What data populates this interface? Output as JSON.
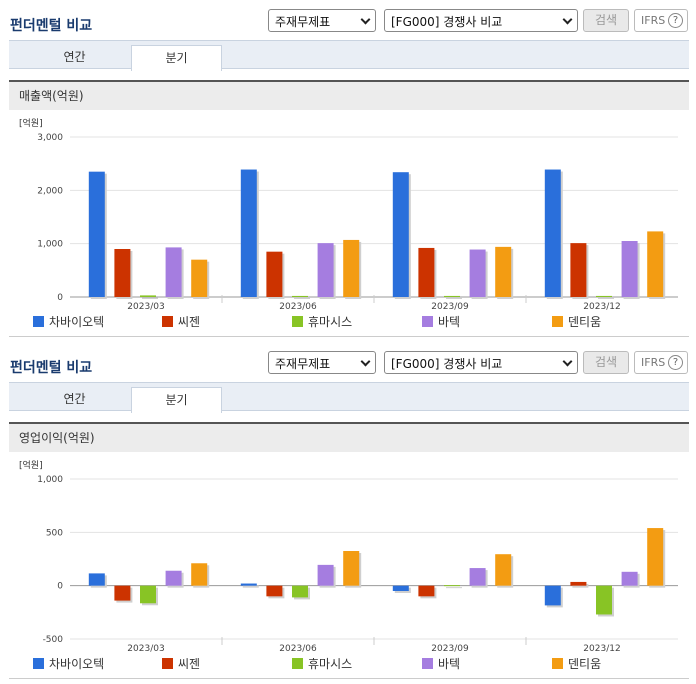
{
  "panels": [
    {
      "title": "펀더멘털 비교",
      "select1": "주재무제표",
      "select2": "[FG000] 경쟁사 비교",
      "search_label": "검색",
      "ifrs_label": "IFRS",
      "ifrs_help": "?",
      "tabs": [
        {
          "label": "연간",
          "active": false
        },
        {
          "label": "분기",
          "active": true
        }
      ],
      "chart_title": "매출액(억원)",
      "unit_label": "[억원]"
    },
    {
      "title": "펀더멘털 비교",
      "select1": "주재무제표",
      "select2": "[FG000] 경쟁사 비교",
      "search_label": "검색",
      "ifrs_label": "IFRS",
      "ifrs_help": "?",
      "tabs": [
        {
          "label": "연간",
          "active": false
        },
        {
          "label": "분기",
          "active": true
        }
      ],
      "chart_title": "영업이익(억원)",
      "unit_label": "[억원]"
    }
  ],
  "chart_data": [
    {
      "type": "bar",
      "title": "매출액(억원)",
      "ylabel": "[억원]",
      "ylim": [
        0,
        3000
      ],
      "yticks": [
        0,
        1000,
        2000,
        3000
      ],
      "ytick_labels": [
        "0",
        "1,000",
        "2,000",
        "3,000"
      ],
      "categories": [
        "2023/03",
        "2023/06",
        "2023/09",
        "2023/12"
      ],
      "series": [
        {
          "name": "차바이오텍",
          "color": "#2a6fdb",
          "values": [
            2350,
            2390,
            2340,
            2390
          ]
        },
        {
          "name": "씨젠",
          "color": "#cc3300",
          "values": [
            900,
            850,
            920,
            1010
          ]
        },
        {
          "name": "휴마시스",
          "color": "#88c425",
          "values": [
            30,
            20,
            20,
            20
          ]
        },
        {
          "name": "바텍",
          "color": "#a57de0",
          "values": [
            930,
            1010,
            890,
            1050
          ]
        },
        {
          "name": "덴티움",
          "color": "#f39c12",
          "values": [
            700,
            1070,
            940,
            1230
          ]
        }
      ]
    },
    {
      "type": "bar",
      "title": "영업이익(억원)",
      "ylabel": "[억원]",
      "ylim": [
        -500,
        1000
      ],
      "yticks": [
        -500,
        0,
        500,
        1000
      ],
      "ytick_labels": [
        "-500",
        "0",
        "500",
        "1,000"
      ],
      "categories": [
        "2023/03",
        "2023/06",
        "2023/09",
        "2023/12"
      ],
      "series": [
        {
          "name": "차바이오텍",
          "color": "#2a6fdb",
          "values": [
            115,
            20,
            -50,
            -185
          ]
        },
        {
          "name": "씨젠",
          "color": "#cc3300",
          "values": [
            -140,
            -100,
            -100,
            35
          ]
        },
        {
          "name": "휴마시스",
          "color": "#88c425",
          "values": [
            -165,
            -110,
            5,
            -270
          ]
        },
        {
          "name": "바텍",
          "color": "#a57de0",
          "values": [
            140,
            195,
            165,
            130
          ]
        },
        {
          "name": "덴티움",
          "color": "#f39c12",
          "values": [
            210,
            325,
            295,
            540
          ]
        }
      ]
    }
  ]
}
